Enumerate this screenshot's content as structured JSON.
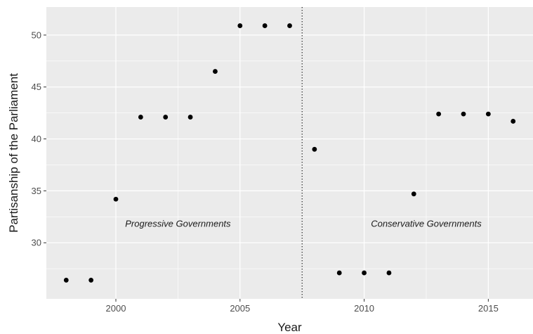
{
  "chart_data": {
    "type": "scatter",
    "xlabel": "Year",
    "ylabel": "Partisanship of the Parliament",
    "xlim": [
      1997.2,
      2016.8
    ],
    "ylim": [
      24.6,
      52.7
    ],
    "x_ticks": [
      2000,
      2005,
      2010,
      2015
    ],
    "y_ticks": [
      30,
      35,
      40,
      45,
      50
    ],
    "x_minor_ticks": [
      2002.5,
      2007.5,
      2012.5
    ],
    "y_minor_ticks": [
      27.5,
      32.5,
      37.5,
      42.5,
      47.5
    ],
    "grid": true,
    "panel_background": "#ebebeb",
    "grid_color": "#ffffff",
    "point_color": "#000000",
    "points": [
      {
        "x": 1998,
        "y": 26.4
      },
      {
        "x": 1999,
        "y": 26.4
      },
      {
        "x": 2000,
        "y": 34.2
      },
      {
        "x": 2001,
        "y": 42.1
      },
      {
        "x": 2002,
        "y": 42.1
      },
      {
        "x": 2003,
        "y": 42.1
      },
      {
        "x": 2004,
        "y": 46.5
      },
      {
        "x": 2005,
        "y": 50.9
      },
      {
        "x": 2006,
        "y": 50.9
      },
      {
        "x": 2007,
        "y": 50.9
      },
      {
        "x": 2008,
        "y": 39.0
      },
      {
        "x": 2009,
        "y": 27.1
      },
      {
        "x": 2010,
        "y": 27.1
      },
      {
        "x": 2011,
        "y": 27.1
      },
      {
        "x": 2012,
        "y": 34.7
      },
      {
        "x": 2013,
        "y": 42.4
      },
      {
        "x": 2014,
        "y": 42.4
      },
      {
        "x": 2015,
        "y": 42.4
      },
      {
        "x": 2016,
        "y": 41.7
      }
    ],
    "vline": {
      "x": 2007.5,
      "style": "dotted"
    },
    "annotations": [
      {
        "text": "Progressive Governments",
        "x": 2002.5,
        "y": 31.8
      },
      {
        "text": "Conservative Governments",
        "x": 2012.5,
        "y": 31.8
      }
    ]
  }
}
